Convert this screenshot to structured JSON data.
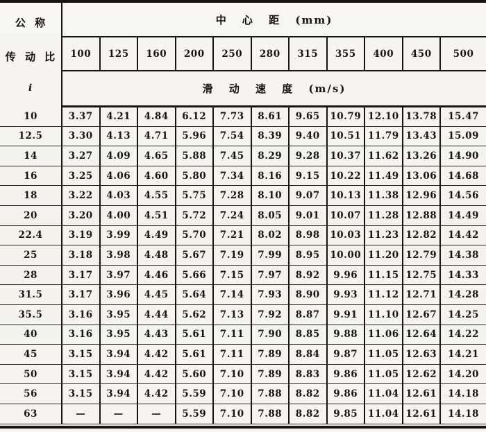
{
  "table": {
    "corner": {
      "line1": "公 称",
      "line2": "传 动 比",
      "symbol": "i"
    },
    "center_distance_header": "中 心 距 (mm)",
    "sliding_speed_header": "滑 动 速 度 (m/s)",
    "columns": [
      "100",
      "125",
      "160",
      "200",
      "250",
      "280",
      "315",
      "355",
      "400",
      "450",
      "500"
    ],
    "empty_cell": "—",
    "rows": [
      {
        "ratio": "10",
        "values": [
          "3.37",
          "4.21",
          "4.84",
          "6.12",
          "7.73",
          "8.61",
          "9.65",
          "10.79",
          "12.10",
          "13.78",
          "15.47"
        ]
      },
      {
        "ratio": "12.5",
        "values": [
          "3.30",
          "4.13",
          "4.71",
          "5.96",
          "7.54",
          "8.39",
          "9.40",
          "10.51",
          "11.79",
          "13.43",
          "15.09"
        ]
      },
      {
        "ratio": "14",
        "values": [
          "3.27",
          "4.09",
          "4.65",
          "5.88",
          "7.45",
          "8.29",
          "9.28",
          "10.37",
          "11.62",
          "13.26",
          "14.90"
        ]
      },
      {
        "ratio": "16",
        "values": [
          "3.25",
          "4.06",
          "4.60",
          "5.80",
          "7.34",
          "8.16",
          "9.15",
          "10.22",
          "11.49",
          "13.06",
          "14.68"
        ]
      },
      {
        "ratio": "18",
        "values": [
          "3.22",
          "4.03",
          "4.55",
          "5.75",
          "7.28",
          "8.10",
          "9.07",
          "10.13",
          "11.38",
          "12.96",
          "14.56"
        ]
      },
      {
        "ratio": "20",
        "values": [
          "3.20",
          "4.00",
          "4.51",
          "5.72",
          "7.24",
          "8.05",
          "9.01",
          "10.07",
          "11.28",
          "12.88",
          "14.49"
        ]
      },
      {
        "ratio": "22.4",
        "values": [
          "3.19",
          "3.99",
          "4.49",
          "5.70",
          "7.21",
          "8.02",
          "8.98",
          "10.03",
          "11.23",
          "12.82",
          "14.42"
        ]
      },
      {
        "ratio": "25",
        "values": [
          "3.18",
          "3.98",
          "4.48",
          "5.67",
          "7.19",
          "7.99",
          "8.95",
          "10.00",
          "11.20",
          "12.79",
          "14.38"
        ]
      },
      {
        "ratio": "28",
        "values": [
          "3.17",
          "3.97",
          "4.46",
          "5.66",
          "7.15",
          "7.97",
          "8.92",
          "9.96",
          "11.15",
          "12.75",
          "14.33"
        ]
      },
      {
        "ratio": "31.5",
        "values": [
          "3.17",
          "3.96",
          "4.45",
          "5.64",
          "7.14",
          "7.93",
          "8.90",
          "9.93",
          "11.12",
          "12.71",
          "14.28"
        ]
      },
      {
        "ratio": "35.5",
        "values": [
          "3.16",
          "3.95",
          "4.44",
          "5.62",
          "7.13",
          "7.92",
          "8.87",
          "9.91",
          "11.10",
          "12.67",
          "14.25"
        ]
      },
      {
        "ratio": "40",
        "values": [
          "3.16",
          "3.95",
          "4.43",
          "5.61",
          "7.11",
          "7.90",
          "8.85",
          "9.88",
          "11.06",
          "12.64",
          "14.22"
        ]
      },
      {
        "ratio": "45",
        "values": [
          "3.15",
          "3.94",
          "4.42",
          "5.61",
          "7.11",
          "7.89",
          "8.84",
          "9.87",
          "11.05",
          "12.63",
          "14.21"
        ]
      },
      {
        "ratio": "50",
        "values": [
          "3.15",
          "3.94",
          "4.42",
          "5.60",
          "7.10",
          "7.89",
          "8.83",
          "9.86",
          "11.05",
          "12.62",
          "14.20"
        ]
      },
      {
        "ratio": "56",
        "values": [
          "3.15",
          "3.94",
          "4.42",
          "5.59",
          "7.10",
          "7.88",
          "8.82",
          "9.86",
          "11.04",
          "12.61",
          "14.18"
        ]
      },
      {
        "ratio": "63",
        "values": [
          "—",
          "—",
          "—",
          "5.59",
          "7.10",
          "7.88",
          "8.82",
          "9.85",
          "11.04",
          "12.61",
          "14.18"
        ]
      }
    ]
  }
}
